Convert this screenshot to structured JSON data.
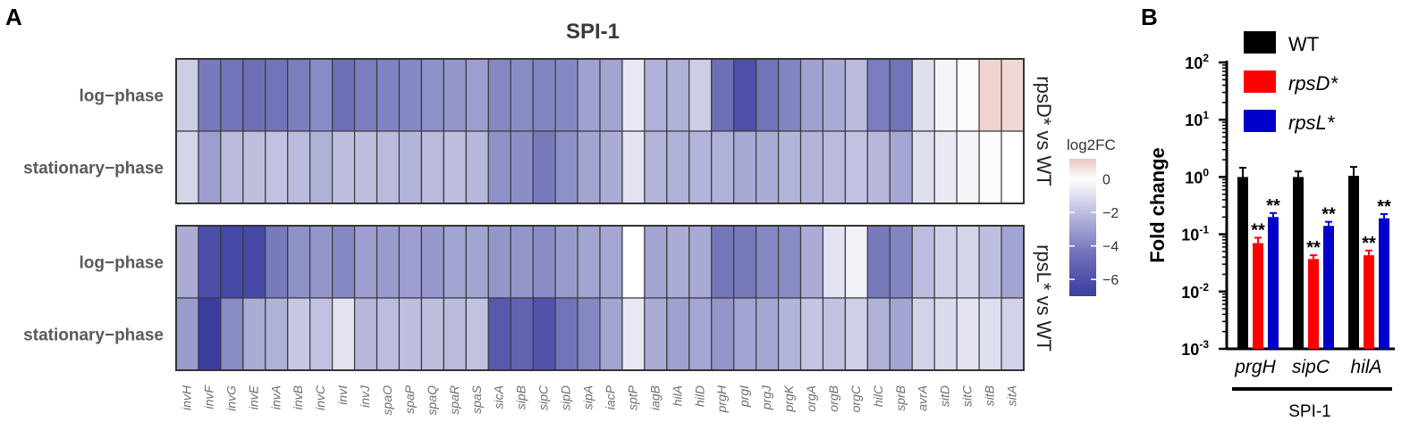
{
  "panels": {
    "a_letter": "A",
    "b_letter": "B"
  },
  "chart_data": [
    {
      "type": "heatmap",
      "title": "SPI-1",
      "colorbar": {
        "title": "log2FC",
        "ticks": [
          0,
          -2,
          -4,
          -6
        ],
        "tick_labels": [
          "0",
          "−2",
          "−4",
          "−6"
        ],
        "range": [
          -7,
          1.2
        ],
        "colors": {
          "negative": "#3a3d9e",
          "zero": "#ffffff",
          "positive": "#e9c6c0"
        }
      },
      "genes": [
        "invH",
        "invF",
        "invG",
        "invE",
        "invA",
        "invB",
        "invC",
        "invI",
        "invJ",
        "spaO",
        "spaP",
        "spaQ",
        "spaR",
        "spaS",
        "sicA",
        "sipB",
        "sipC",
        "sipD",
        "sipA",
        "iacP",
        "sptP",
        "iagB",
        "hilA",
        "hilD",
        "prgH",
        "prgI",
        "prgJ",
        "prgK",
        "orgA",
        "orgB",
        "orgC",
        "hilC",
        "sprB",
        "avrA",
        "sitD",
        "sitC",
        "sitB",
        "sitA"
      ],
      "blocks": [
        {
          "comparison_label": "rpsD* vs WT",
          "rows": [
            {
              "label": "log−phase",
              "values": [
                -1.8,
                -4.8,
                -5.0,
                -5.2,
                -5.0,
                -4.7,
                -4.2,
                -5.2,
                -4.7,
                -4.5,
                -4.3,
                -4.0,
                -3.8,
                -3.5,
                -4.3,
                -4.2,
                -4.4,
                -4.3,
                -3.4,
                -3.3,
                -0.8,
                -2.8,
                -2.8,
                -1.8,
                -5.2,
                -6.3,
                -5.0,
                -4.4,
                -3.4,
                -3.0,
                -2.5,
                -4.7,
                -5.0,
                -1.2,
                -0.4,
                0.1,
                0.9,
                0.8
              ]
            },
            {
              "label": "stationary−phase",
              "values": [
                -1.5,
                -3.5,
                -2.5,
                -2.3,
                -2.2,
                -2.5,
                -2.8,
                -2.3,
                -2.3,
                -2.5,
                -2.7,
                -2.5,
                -2.3,
                -2.6,
                -4.0,
                -4.1,
                -4.8,
                -4.0,
                -3.3,
                -3.0,
                -1.0,
                -2.7,
                -2.8,
                -2.7,
                -2.8,
                -3.1,
                -3.0,
                -2.7,
                -2.7,
                -2.5,
                -2.2,
                -2.6,
                -3.2,
                -1.2,
                -0.8,
                -0.4,
                -0.1,
                0.0
              ]
            }
          ]
        },
        {
          "comparison_label": "rpsL* vs WT",
          "rows": [
            {
              "label": "log−phase",
              "values": [
                -3.0,
                -6.4,
                -6.6,
                -6.6,
                -4.8,
                -4.0,
                -3.8,
                -4.3,
                -3.5,
                -3.6,
                -3.5,
                -3.7,
                -3.3,
                -3.3,
                -3.8,
                -3.8,
                -4.2,
                -3.6,
                -3.3,
                -3.2,
                0.0,
                -3.3,
                -3.0,
                -3.1,
                -4.9,
                -4.8,
                -4.3,
                -4.2,
                -3.0,
                -1.0,
                -0.5,
                -4.8,
                -4.4,
                -2.4,
                -1.7,
                -1.5,
                -2.3,
                -3.3
              ]
            },
            {
              "label": "stationary−phase",
              "values": [
                -3.6,
                -7.0,
                -4.2,
                -3.0,
                -2.8,
                -2.0,
                -2.2,
                -1.0,
                -2.6,
                -2.4,
                -2.3,
                -2.3,
                -2.5,
                -2.2,
                -6.0,
                -5.6,
                -6.2,
                -5.0,
                -4.3,
                -3.3,
                -0.8,
                -3.0,
                -3.4,
                -3.2,
                -3.8,
                -3.3,
                -3.2,
                -2.7,
                -2.1,
                -2.2,
                -1.7,
                -2.8,
                -3.3,
                -1.6,
                -1.3,
                -1.0,
                -1.2,
                -1.6
              ]
            }
          ]
        }
      ]
    },
    {
      "type": "bar",
      "ylabel": "Fold change",
      "yscale": "log",
      "ylim": [
        0.001,
        100
      ],
      "yticks": [
        {
          "value": 100,
          "base": "10",
          "exp": "2"
        },
        {
          "value": 10,
          "base": "10",
          "exp": "1"
        },
        {
          "value": 1,
          "base": "10",
          "exp": "0"
        },
        {
          "value": 0.1,
          "base": "10",
          "exp": "-1"
        },
        {
          "value": 0.01,
          "base": "10",
          "exp": "-2"
        },
        {
          "value": 0.001,
          "base": "10",
          "exp": "-3"
        }
      ],
      "categories": [
        "prgH",
        "sipC",
        "hilA"
      ],
      "group_label": "SPI-1",
      "legend_position": "top",
      "series": [
        {
          "name": "WT",
          "color": "#000000",
          "values": [
            1.0,
            1.0,
            1.05
          ],
          "error": [
            0.45,
            0.25,
            0.45
          ],
          "significance": [
            "",
            "",
            ""
          ]
        },
        {
          "name": "rpsD*",
          "color": "#ff0000",
          "values": [
            0.07,
            0.037,
            0.043
          ],
          "error": [
            0.017,
            0.006,
            0.009
          ],
          "significance": [
            "**",
            "**",
            "**"
          ]
        },
        {
          "name": "rpsL*",
          "color": "#0000cc",
          "values": [
            0.2,
            0.14,
            0.19
          ],
          "error": [
            0.035,
            0.025,
            0.035
          ],
          "significance": [
            "**",
            "**",
            "**"
          ]
        }
      ]
    }
  ]
}
